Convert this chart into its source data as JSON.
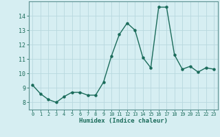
{
  "xlabel": "Humidex (Indice chaleur)",
  "x_values": [
    0,
    1,
    2,
    3,
    4,
    5,
    6,
    7,
    8,
    9,
    10,
    11,
    12,
    13,
    14,
    15,
    16,
    17,
    18,
    19,
    20,
    21,
    22,
    23
  ],
  "y_values": [
    9.2,
    8.6,
    8.2,
    8.0,
    8.4,
    8.7,
    8.7,
    8.5,
    8.5,
    9.4,
    11.2,
    12.7,
    13.5,
    13.0,
    11.1,
    10.4,
    14.6,
    14.6,
    11.3,
    10.3,
    10.5,
    10.1,
    10.4,
    10.3
  ],
  "ylim": [
    7.5,
    15.0
  ],
  "yticks": [
    8,
    9,
    10,
    11,
    12,
    13,
    14
  ],
  "xlim": [
    -0.5,
    23.5
  ],
  "bg_color": "#d6eef2",
  "grid_color": "#b8d8de",
  "line_color": "#1a6b5a",
  "marker_color": "#1a6b5a",
  "tick_label_color": "#1a6b5a",
  "axis_color": "#5a9090"
}
